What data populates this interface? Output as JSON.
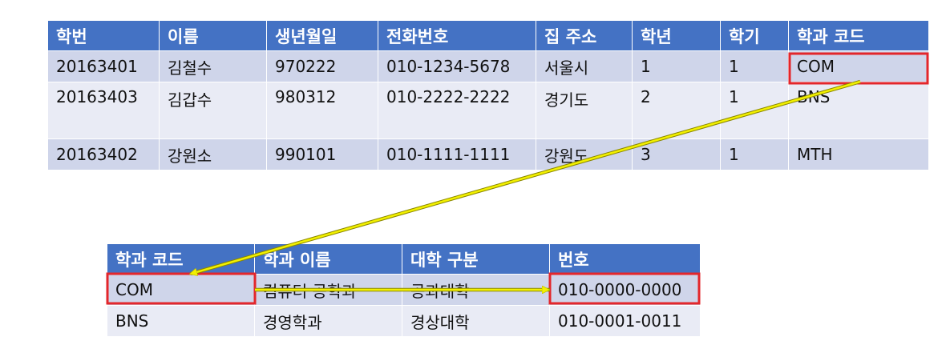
{
  "student_table": {
    "headers": [
      "학번",
      "이름",
      "생년월일",
      "전화번호",
      "집 주소",
      "학년",
      "학기",
      "학과 코드"
    ],
    "rows": [
      [
        "20163401",
        "김철수",
        "970222",
        "010-1234-5678",
        "서울시",
        "1",
        "1",
        "COM"
      ],
      [
        "20163403",
        "김갑수",
        "980312",
        "010-2222-2222",
        "경기도",
        "2",
        "1",
        "BNS"
      ],
      [
        "20163402",
        "강원소",
        "990101",
        "010-1111-1111",
        "강원도",
        "3",
        "1",
        "MTH"
      ]
    ]
  },
  "department_table": {
    "headers": [
      "학과 코드",
      "학과 이름",
      "대학 구분",
      "번호"
    ],
    "rows": [
      [
        "COM",
        "컴퓨터 공학과",
        "공과대학",
        "010-0000-0000"
      ],
      [
        "BNS",
        "경영학과",
        "경상대학",
        "010-0001-0011"
      ]
    ]
  },
  "colors": {
    "header": "#4472c4",
    "row_odd": "#cfd5ea",
    "row_even": "#e9ebf5",
    "highlight_box": "#e3262b",
    "arrow": "#f2f000"
  }
}
